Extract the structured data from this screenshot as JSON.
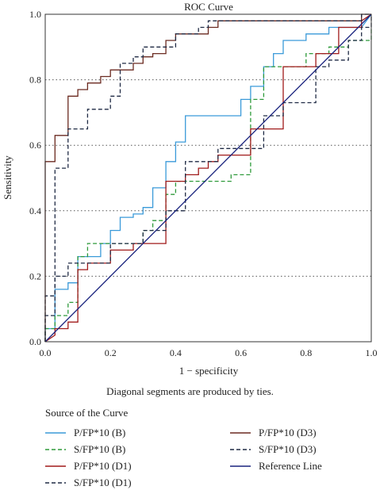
{
  "chart_data": {
    "type": "line",
    "title": "ROC Curve",
    "xlabel": "1 − specificity",
    "ylabel": "Sensitivity",
    "xlim": [
      0,
      1
    ],
    "ylim": [
      0,
      1
    ],
    "xticks": [
      "0.0",
      "0.2",
      "0.4",
      "0.6",
      "0.8",
      "1.0"
    ],
    "yticks": [
      "0.0",
      "0.2",
      "0.4",
      "0.6",
      "0.8",
      "1.0"
    ],
    "grid": "horizontal-dotted",
    "legend_title": "Source of the Curve",
    "note": "Diagonal segments are produced by ties.",
    "series": [
      {
        "name": "P/FP*10 (B)",
        "color": "#3a9ad9",
        "dash": "solid",
        "x": [
          0,
          0,
          0.03,
          0.03,
          0.07,
          0.07,
          0.1,
          0.1,
          0.17,
          0.17,
          0.2,
          0.2,
          0.23,
          0.23,
          0.27,
          0.27,
          0.3,
          0.3,
          0.33,
          0.33,
          0.37,
          0.37,
          0.4,
          0.4,
          0.43,
          0.43,
          0.6,
          0.6,
          0.63,
          0.63,
          0.67,
          0.67,
          0.7,
          0.7,
          0.73,
          0.73,
          0.8,
          0.8,
          0.87,
          0.87,
          0.97,
          1
        ],
        "y": [
          0,
          0.04,
          0.04,
          0.16,
          0.16,
          0.18,
          0.18,
          0.26,
          0.26,
          0.3,
          0.3,
          0.34,
          0.34,
          0.38,
          0.38,
          0.39,
          0.39,
          0.41,
          0.41,
          0.47,
          0.47,
          0.55,
          0.55,
          0.61,
          0.61,
          0.69,
          0.69,
          0.74,
          0.74,
          0.78,
          0.78,
          0.84,
          0.84,
          0.88,
          0.88,
          0.92,
          0.92,
          0.94,
          0.94,
          0.96,
          0.96,
          1
        ]
      },
      {
        "name": "S/FP*10 (B)",
        "color": "#2e9a3a",
        "dash": "dashed",
        "x": [
          0,
          0,
          0.03,
          0.03,
          0.07,
          0.07,
          0.1,
          0.1,
          0.13,
          0.13,
          0.23,
          0.23,
          0.3,
          0.3,
          0.33,
          0.33,
          0.37,
          0.37,
          0.4,
          0.4,
          0.57,
          0.57,
          0.63,
          0.63,
          0.67,
          0.67,
          0.73,
          0.73,
          0.8,
          0.8,
          0.87,
          0.87,
          0.93,
          0.93,
          0.97,
          0.97,
          1,
          1
        ],
        "y": [
          0,
          0.04,
          0.04,
          0.08,
          0.08,
          0.12,
          0.12,
          0.26,
          0.26,
          0.3,
          0.3,
          0.3,
          0.3,
          0.34,
          0.34,
          0.37,
          0.37,
          0.45,
          0.45,
          0.49,
          0.49,
          0.51,
          0.51,
          0.74,
          0.74,
          0.84,
          0.84,
          0.84,
          0.84,
          0.88,
          0.88,
          0.9,
          0.9,
          0.92,
          0.92,
          0.92,
          0.92,
          0.96
        ]
      },
      {
        "name": "P/FP*10 (D1)",
        "color": "#a01a1a",
        "dash": "solid",
        "x": [
          0,
          0.03,
          0.03,
          0.07,
          0.07,
          0.1,
          0.1,
          0.13,
          0.13,
          0.2,
          0.2,
          0.27,
          0.27,
          0.37,
          0.37,
          0.4,
          0.4,
          0.43,
          0.43,
          0.47,
          0.47,
          0.5,
          0.5,
          0.53,
          0.53,
          0.63,
          0.63,
          0.67,
          0.67,
          0.73,
          0.73,
          0.83,
          0.83,
          0.9,
          0.9,
          0.97,
          0.97,
          1
        ],
        "y": [
          0,
          0.02,
          0.04,
          0.04,
          0.06,
          0.06,
          0.22,
          0.22,
          0.24,
          0.24,
          0.28,
          0.28,
          0.3,
          0.3,
          0.49,
          0.49,
          0.49,
          0.49,
          0.51,
          0.51,
          0.53,
          0.53,
          0.55,
          0.55,
          0.57,
          0.57,
          0.65,
          0.65,
          0.65,
          0.65,
          0.84,
          0.84,
          0.88,
          0.88,
          0.96,
          0.96,
          0.98,
          1
        ]
      },
      {
        "name": "S/FP*10 (D1)",
        "color": "#1f2a44",
        "dash": "dashed",
        "x": [
          0,
          0,
          0.03,
          0.03,
          0.07,
          0.07,
          0.1,
          0.1,
          0.2,
          0.2,
          0.3,
          0.3,
          0.37,
          0.37,
          0.43,
          0.43,
          0.53,
          0.53,
          0.6,
          0.6,
          0.67,
          0.67,
          0.73,
          0.73,
          0.77,
          0.77,
          0.83,
          0.83,
          0.87,
          0.87,
          0.93,
          0.93,
          0.97,
          0.97,
          1,
          1
        ],
        "y": [
          0,
          0.14,
          0.14,
          0.2,
          0.2,
          0.24,
          0.24,
          0.24,
          0.24,
          0.3,
          0.3,
          0.34,
          0.34,
          0.4,
          0.4,
          0.55,
          0.55,
          0.59,
          0.59,
          0.59,
          0.59,
          0.69,
          0.69,
          0.73,
          0.73,
          0.73,
          0.73,
          0.84,
          0.84,
          0.86,
          0.86,
          0.92,
          0.92,
          0.96,
          0.96,
          1
        ]
      },
      {
        "name": "P/FP*10 (D3)",
        "color": "#6b2a20",
        "dash": "solid",
        "x": [
          0,
          0,
          0.03,
          0.03,
          0.07,
          0.07,
          0.1,
          0.1,
          0.13,
          0.13,
          0.17,
          0.17,
          0.2,
          0.2,
          0.27,
          0.27,
          0.3,
          0.3,
          0.33,
          0.33,
          0.37,
          0.37,
          0.4,
          0.4,
          0.5,
          0.5,
          0.53,
          0.53,
          0.57,
          0.57,
          0.6,
          0.6,
          0.97,
          0.97,
          1
        ],
        "y": [
          0,
          0.55,
          0.55,
          0.63,
          0.63,
          0.75,
          0.75,
          0.77,
          0.77,
          0.79,
          0.79,
          0.81,
          0.81,
          0.83,
          0.83,
          0.85,
          0.85,
          0.87,
          0.87,
          0.88,
          0.88,
          0.92,
          0.92,
          0.94,
          0.94,
          0.96,
          0.96,
          0.98,
          0.98,
          0.98,
          0.98,
          0.98,
          0.98,
          1,
          1
        ]
      },
      {
        "name": "S/FP*10 (D3)",
        "color": "#1f2a44",
        "dash": "dashed",
        "x": [
          0,
          0,
          0.03,
          0.03,
          0.07,
          0.07,
          0.13,
          0.13,
          0.2,
          0.2,
          0.23,
          0.23,
          0.27,
          0.27,
          0.3,
          0.3,
          0.4,
          0.4,
          0.47,
          0.47,
          0.5,
          0.5,
          0.97,
          0.97,
          1
        ],
        "y": [
          0,
          0.08,
          0.08,
          0.53,
          0.53,
          0.65,
          0.65,
          0.71,
          0.71,
          0.75,
          0.75,
          0.85,
          0.85,
          0.87,
          0.87,
          0.9,
          0.9,
          0.94,
          0.94,
          0.96,
          0.96,
          0.98,
          0.98,
          1,
          1
        ]
      },
      {
        "name": "Reference Line",
        "color": "#1a237e",
        "dash": "solid",
        "x": [
          0,
          1
        ],
        "y": [
          0,
          1
        ]
      }
    ]
  }
}
